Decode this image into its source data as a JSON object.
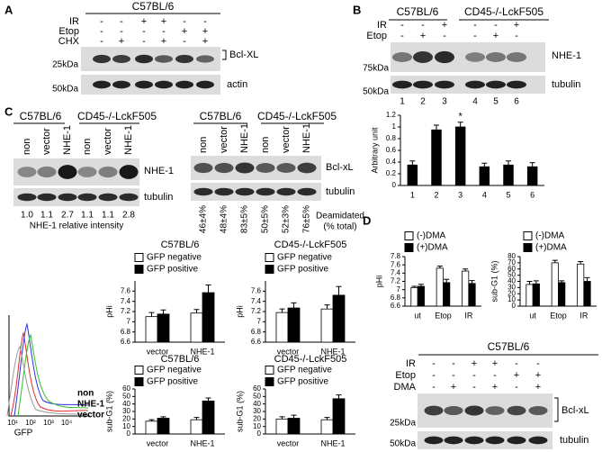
{
  "panel_a": {
    "label": "A",
    "strain": "C57BL/6",
    "rows": [
      {
        "name": "IR",
        "signs": [
          "-",
          "-",
          "+",
          "+",
          "-",
          "-"
        ]
      },
      {
        "name": "Etop",
        "signs": [
          "-",
          "-",
          "-",
          "-",
          "+",
          "+"
        ]
      },
      {
        "name": "CHX",
        "signs": [
          "-",
          "+",
          "-",
          "+",
          "-",
          "+"
        ]
      }
    ],
    "bands": [
      "Bcl-XL",
      "actin"
    ],
    "markers": [
      "25kDa",
      "50kDa"
    ]
  },
  "panel_b": {
    "label": "B",
    "strains": [
      "C57BL/6",
      "CD45-/-LckF505"
    ],
    "rows": [
      {
        "name": "IR",
        "signs": [
          "-",
          "-",
          "+",
          "-",
          "-",
          "+"
        ]
      },
      {
        "name": "Etop",
        "signs": [
          "-",
          "+",
          "-",
          "-",
          "+",
          "-"
        ]
      }
    ],
    "bands": [
      "NHE-1",
      "tubulin"
    ],
    "markers": [
      "75kDa",
      "50kDa"
    ],
    "lanes": [
      "1",
      "2",
      "3",
      "4",
      "5",
      "6"
    ]
  },
  "panel_c": {
    "label": "C",
    "left": {
      "strains": [
        "C57BL/6",
        "CD45-/-LckF505"
      ],
      "columns": [
        "non",
        "vector",
        "NHE-1",
        "non",
        "vector",
        "NHE-1"
      ],
      "bands": [
        "NHE-1",
        "tubulin"
      ],
      "intensities": [
        "1.0",
        "1.1",
        "2.7",
        "1.1",
        "1.1",
        "2.8"
      ],
      "caption": "NHE-1 relative intensity"
    },
    "right": {
      "strains": [
        "C57BL/6",
        "CD45-/-LckF505"
      ],
      "columns": [
        "non",
        "vector",
        "NHE-1",
        "non",
        "vector",
        "NHE-1"
      ],
      "bands": [
        "Bcl-xL",
        "tubulin"
      ],
      "deamidated": [
        "46±4%",
        "48±4%",
        "83±5%",
        "50±5%",
        "52±3%",
        "76±5%"
      ],
      "caption": [
        "Deamidated",
        "(% total)"
      ]
    },
    "flow": {
      "labels": [
        "non",
        "NHE-1",
        "vector"
      ],
      "xlabel": "GFP",
      "xticks": [
        "10¹",
        "10²",
        "10³",
        "10⁴"
      ]
    }
  },
  "panel_d": {
    "label": "D",
    "strain": "C57BL/6",
    "rows": [
      {
        "name": "IR",
        "signs": [
          "-",
          "-",
          "+",
          "+",
          "-",
          "-"
        ]
      },
      {
        "name": "Etop",
        "signs": [
          "-",
          "-",
          "-",
          "-",
          "+",
          "+"
        ]
      },
      {
        "name": "DMA",
        "signs": [
          "-",
          "+",
          "-",
          "+",
          "-",
          "+"
        ]
      }
    ],
    "bands": [
      "Bcl-xL",
      "tubulin"
    ],
    "markers": [
      "25kDa",
      "50kDa"
    ]
  },
  "chart_data": [
    {
      "type": "bar",
      "ylabel": "Arbitrary unit",
      "categories": [
        "1",
        "2",
        "3",
        "4",
        "5",
        "6"
      ],
      "series": [
        {
          "color": "#000000",
          "values": [
            0.35,
            0.95,
            1.0,
            0.32,
            0.35,
            0.32
          ],
          "errors": [
            0.07,
            0.08,
            0.08,
            0.06,
            0.07,
            0.07
          ]
        }
      ],
      "ylim": [
        0,
        1.2
      ],
      "yticks": [
        0,
        0.2,
        0.4,
        0.6,
        0.8,
        1,
        1.2
      ],
      "annotation": "*"
    },
    {
      "type": "bar",
      "title": "C57BL/6",
      "ylabel": "pHi",
      "categories": [
        "vector",
        "NHE-1"
      ],
      "series": [
        {
          "name": "GFP negative",
          "color": "#ffffff",
          "values": [
            7.1,
            7.17
          ],
          "errors": [
            0.08,
            0.07
          ]
        },
        {
          "name": "GFP positive",
          "color": "#000000",
          "values": [
            7.15,
            7.57
          ],
          "errors": [
            0.08,
            0.15
          ]
        }
      ],
      "ylim": [
        6.6,
        7.8
      ],
      "yticks": [
        6.6,
        6.8,
        7,
        7.2,
        7.4,
        7.6
      ]
    },
    {
      "type": "bar",
      "title": "CD45-/-LckF505",
      "ylabel": "pHi",
      "categories": [
        "vector",
        "NHE-1"
      ],
      "series": [
        {
          "name": "GFP negative",
          "color": "#ffffff",
          "values": [
            7.18,
            7.25
          ],
          "errors": [
            0.07,
            0.08
          ]
        },
        {
          "name": "GFP positive",
          "color": "#000000",
          "values": [
            7.27,
            7.52
          ],
          "errors": [
            0.1,
            0.17
          ]
        }
      ],
      "ylim": [
        6.6,
        7.8
      ],
      "yticks": [
        6.6,
        6.8,
        7,
        7.2,
        7.4,
        7.6
      ]
    },
    {
      "type": "bar",
      "title": "C57BL/6",
      "ylabel": "sub-G1 (%)",
      "categories": [
        "vector",
        "NHE-1"
      ],
      "series": [
        {
          "name": "GFP negative",
          "color": "#ffffff",
          "values": [
            17,
            19
          ],
          "errors": [
            2,
            3
          ]
        },
        {
          "name": "GFP positive",
          "color": "#000000",
          "values": [
            21,
            44
          ],
          "errors": [
            2,
            4
          ]
        }
      ],
      "ylim": [
        0,
        60
      ],
      "yticks": [
        0,
        10,
        20,
        30,
        40,
        50,
        60
      ]
    },
    {
      "type": "bar",
      "title": "CD45-/-LckF505",
      "ylabel": "sub-G1 (%)",
      "categories": [
        "vector",
        "NHE-1"
      ],
      "series": [
        {
          "name": "GFP negative",
          "color": "#ffffff",
          "values": [
            20,
            19
          ],
          "errors": [
            3,
            3
          ]
        },
        {
          "name": "GFP positive",
          "color": "#000000",
          "values": [
            21,
            47
          ],
          "errors": [
            4,
            5
          ]
        }
      ],
      "ylim": [
        0,
        60
      ],
      "yticks": [
        0,
        10,
        20,
        30,
        40,
        50,
        60
      ]
    },
    {
      "type": "bar",
      "ylabel": "pHi",
      "categories": [
        "ut",
        "Etop",
        "IR"
      ],
      "series": [
        {
          "name": "(-)DMA",
          "color": "#ffffff",
          "values": [
            7.05,
            7.52,
            7.45
          ],
          "errors": [
            0.03,
            0.05,
            0.05
          ]
        },
        {
          "name": "(+)DMA",
          "color": "#000000",
          "values": [
            7.08,
            7.17,
            7.15
          ],
          "errors": [
            0.05,
            0.08,
            0.07
          ]
        }
      ],
      "ylim": [
        6.6,
        7.8
      ],
      "yticks": [
        6.6,
        6.8,
        7,
        7.2,
        7.4,
        7.6,
        7.8
      ]
    },
    {
      "type": "bar",
      "ylabel": "sub-G1 (%)",
      "categories": [
        "ut",
        "Etop",
        "IR"
      ],
      "series": [
        {
          "name": "(-)DMA",
          "color": "#ffffff",
          "values": [
            35,
            70,
            68
          ],
          "errors": [
            5,
            4,
            4
          ]
        },
        {
          "name": "(+)DMA",
          "color": "#000000",
          "values": [
            36,
            38,
            40
          ],
          "errors": [
            5,
            3,
            6
          ]
        }
      ],
      "ylim": [
        0,
        80
      ],
      "yticks": [
        0,
        10,
        20,
        30,
        40,
        50,
        60,
        70,
        80
      ]
    }
  ]
}
